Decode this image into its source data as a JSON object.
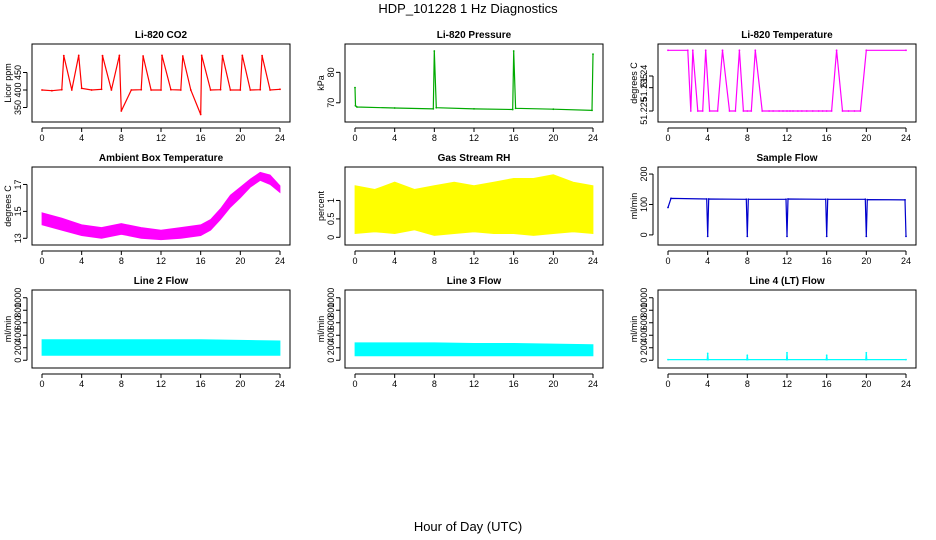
{
  "title": "HDP_101228  1 Hz Diagnostics",
  "shared_xlabel": "Hour of Day (UTC)",
  "chart_data": [
    {
      "id": "co2",
      "type": "line",
      "title": "Li-820 CO2",
      "ylabel": "Licor ppm",
      "color": "#ff0000",
      "xlim": [
        0,
        24
      ],
      "ylim": [
        320,
        520
      ],
      "xticks": [
        0,
        4,
        8,
        12,
        16,
        20,
        24
      ],
      "yticks": [
        350,
        400,
        450
      ],
      "x": [
        0,
        1,
        2,
        2.2,
        3,
        3.7,
        4,
        5,
        6,
        6.1,
        7,
        7.8,
        8,
        9,
        10,
        10.2,
        11,
        12,
        12.1,
        13,
        14,
        14.2,
        15,
        16,
        16.1,
        17,
        18,
        18.2,
        19,
        20,
        20.2,
        21,
        22,
        22.2,
        23,
        24
      ],
      "values": [
        400,
        398,
        401,
        498,
        400,
        499,
        405,
        400,
        402,
        498,
        400,
        499,
        340,
        400,
        401,
        497,
        400,
        400,
        499,
        401,
        400,
        497,
        400,
        330,
        499,
        400,
        401,
        498,
        400,
        400,
        499,
        400,
        401,
        498,
        400,
        402
      ]
    },
    {
      "id": "pressure",
      "type": "line",
      "title": "Li-820 Pressure",
      "ylabel": "kPa",
      "color": "#00aa00",
      "xlim": [
        0,
        24
      ],
      "ylim": [
        65,
        88
      ],
      "xticks": [
        0,
        4,
        8,
        12,
        16,
        20,
        24
      ],
      "yticks": [
        70,
        80
      ],
      "x": [
        0,
        0.05,
        0.2,
        4,
        7.9,
        8.0,
        8.2,
        12,
        15.9,
        16.0,
        16.2,
        20,
        23.9,
        24
      ],
      "values": [
        75,
        69,
        68.6,
        68.3,
        68.0,
        87,
        68.4,
        68.0,
        67.8,
        87,
        68.2,
        67.9,
        67.5,
        86
      ]
    },
    {
      "id": "licor_temp",
      "type": "line",
      "title": "Li-820 Temperature",
      "ylabel": "degrees C",
      "color": "#ff00ff",
      "xlim": [
        0,
        24
      ],
      "ylim": [
        51.222,
        51.252
      ],
      "xticks": [
        0,
        4,
        8,
        12,
        16,
        20,
        24
      ],
      "yticks": [
        51.225,
        51.235,
        51.24
      ],
      "x": [
        0,
        2,
        2.3,
        2.5,
        3.0,
        3.5,
        3.8,
        4.2,
        5,
        5.5,
        6.2,
        6.8,
        7.2,
        7.6,
        8.0,
        8.4,
        8.8,
        9.5,
        10.2,
        10.6,
        11.2,
        11.6,
        12.0,
        12.3,
        12.6,
        13.1,
        13.5,
        14.0,
        14.6,
        15.2,
        15.6,
        16.0,
        16.5,
        17.0,
        17.6,
        18.2,
        18.8,
        19.4,
        20,
        24
      ],
      "values": [
        51.251,
        51.251,
        51.225,
        51.251,
        51.225,
        51.225,
        51.251,
        51.225,
        51.225,
        51.251,
        51.225,
        51.225,
        51.251,
        51.225,
        51.225,
        51.225,
        51.251,
        51.225,
        51.225,
        51.225,
        51.225,
        51.225,
        51.225,
        51.225,
        51.225,
        51.225,
        51.225,
        51.225,
        51.225,
        51.225,
        51.225,
        51.225,
        51.225,
        51.251,
        51.225,
        51.225,
        51.225,
        51.225,
        51.251,
        51.251
      ]
    },
    {
      "id": "ambient",
      "type": "area",
      "title": "Ambient Box Temperature",
      "ylabel": "degrees C",
      "color": "#ff00ff",
      "xlim": [
        0,
        24
      ],
      "ylim": [
        12.8,
        18.0
      ],
      "xticks": [
        0,
        4,
        8,
        12,
        16,
        20,
        24
      ],
      "yticks": [
        13,
        15,
        17
      ],
      "x": [
        0,
        2,
        4,
        6,
        8,
        10,
        12,
        14,
        16,
        17,
        18,
        19,
        20,
        21,
        22,
        23,
        24
      ],
      "low": [
        14.0,
        13.6,
        13.2,
        13.0,
        13.3,
        13.0,
        12.9,
        13.0,
        13.2,
        13.6,
        14.4,
        15.3,
        16.0,
        16.8,
        17.3,
        17.0,
        16.4
      ],
      "high": [
        14.9,
        14.5,
        14.0,
        13.8,
        14.1,
        13.8,
        13.6,
        13.8,
        14.0,
        14.4,
        15.2,
        16.2,
        16.8,
        17.4,
        17.9,
        17.7,
        16.9
      ]
    },
    {
      "id": "rh",
      "type": "area",
      "title": "Gas Stream RH",
      "ylabel": "percent",
      "color": "#ffff00",
      "xlim": [
        0,
        24
      ],
      "ylim": [
        -0.1,
        1.8
      ],
      "xticks": [
        0,
        4,
        8,
        12,
        16,
        20,
        24
      ],
      "yticks": [
        0.0,
        0.5,
        1.0
      ],
      "x": [
        0,
        2,
        4,
        6,
        8,
        10,
        12,
        14,
        16,
        18,
        20,
        22,
        24
      ],
      "low": [
        0.1,
        0.15,
        0.1,
        0.2,
        0.05,
        0.1,
        0.15,
        0.1,
        0.1,
        0.05,
        0.1,
        0.15,
        0.1
      ],
      "high": [
        1.4,
        1.3,
        1.5,
        1.3,
        1.4,
        1.5,
        1.4,
        1.5,
        1.6,
        1.6,
        1.7,
        1.5,
        1.4
      ]
    },
    {
      "id": "sample_flow",
      "type": "line",
      "title": "Sample Flow",
      "ylabel": "ml/min",
      "color": "#0000cc",
      "xlim": [
        0,
        24
      ],
      "ylim": [
        -20,
        210
      ],
      "xticks": [
        0,
        4,
        8,
        12,
        16,
        20,
        24
      ],
      "yticks": [
        0,
        100,
        200
      ],
      "x": [
        0,
        0.3,
        3.9,
        4.0,
        4.1,
        7.9,
        8.0,
        8.1,
        11.9,
        12.0,
        12.1,
        15.9,
        16.0,
        16.1,
        19.9,
        20.0,
        20.1,
        23.9,
        24
      ],
      "values": [
        90,
        120,
        118,
        -5,
        118,
        117,
        -5,
        117,
        117,
        -5,
        118,
        117,
        -5,
        117,
        117,
        -5,
        116,
        115,
        -5
      ]
    },
    {
      "id": "line2",
      "type": "area",
      "title": "Line 2 Flow",
      "ylabel": "ml/min",
      "color": "#00ffff",
      "xlim": [
        0,
        24
      ],
      "ylim": [
        -60,
        1060
      ],
      "xticks": [
        0,
        4,
        8,
        12,
        16,
        20,
        24
      ],
      "yticks": [
        0,
        200,
        400,
        600,
        800,
        1000
      ],
      "x": [
        0,
        4,
        8,
        12,
        16,
        20,
        24
      ],
      "low": [
        80,
        80,
        80,
        80,
        80,
        80,
        80
      ],
      "high": [
        330,
        330,
        330,
        330,
        330,
        320,
        310
      ]
    },
    {
      "id": "line3",
      "type": "area",
      "title": "Line 3 Flow",
      "ylabel": "ml/min",
      "color": "#00ffff",
      "xlim": [
        0,
        24
      ],
      "ylim": [
        -60,
        1060
      ],
      "xticks": [
        0,
        4,
        8,
        12,
        16,
        20,
        24
      ],
      "yticks": [
        0,
        200,
        400,
        600,
        800,
        1000
      ],
      "x": [
        0,
        4,
        8,
        12,
        16,
        20,
        24
      ],
      "low": [
        70,
        70,
        70,
        70,
        70,
        70,
        70
      ],
      "high": [
        280,
        280,
        280,
        270,
        270,
        260,
        250
      ]
    },
    {
      "id": "line4",
      "type": "line",
      "title": "Line 4 (LT) Flow",
      "ylabel": "ml/min",
      "color": "#00ffff",
      "xlim": [
        0,
        24
      ],
      "ylim": [
        -60,
        1060
      ],
      "xticks": [
        0,
        4,
        8,
        12,
        16,
        20,
        24
      ],
      "yticks": [
        0,
        200,
        400,
        600,
        800,
        1000
      ],
      "x": [
        0,
        3.95,
        4.0,
        4.05,
        7.95,
        8.0,
        8.05,
        11.95,
        12.0,
        12.05,
        15.95,
        16.0,
        16.05,
        19.95,
        20.0,
        20.05,
        24
      ],
      "values": [
        10,
        10,
        110,
        10,
        10,
        80,
        10,
        10,
        120,
        10,
        10,
        80,
        10,
        10,
        120,
        10,
        10
      ]
    }
  ]
}
